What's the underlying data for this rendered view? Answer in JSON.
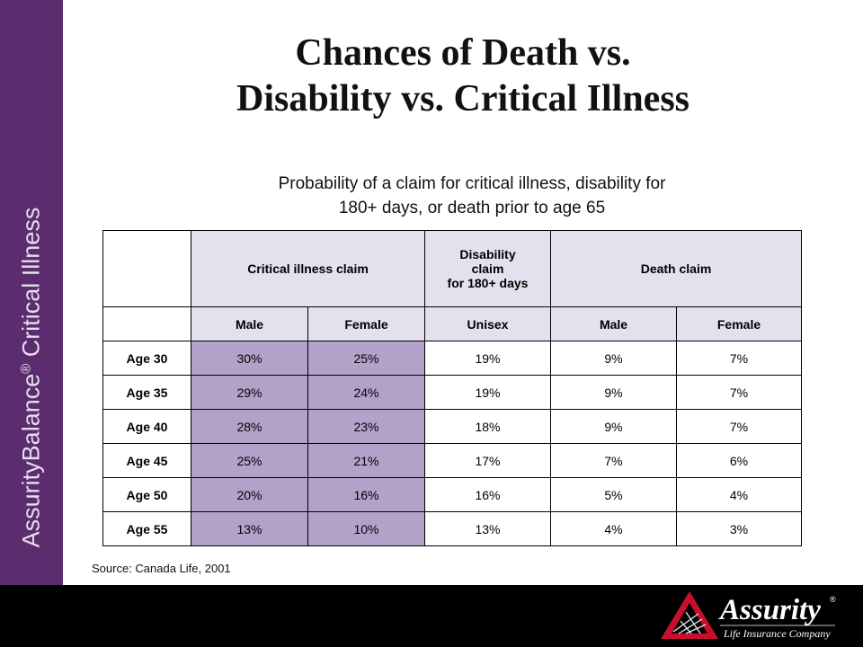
{
  "sidebar": {
    "brand": "AssurityBalance",
    "reg": "®",
    "product": " Critical Illness"
  },
  "title": {
    "line1": "Chances of Death vs.",
    "line2": "Disability vs. Critical Illness"
  },
  "subtitle": {
    "line1": "Probability of a claim for critical illness, disability for",
    "line2": "180+ days, or death prior to age 65"
  },
  "table": {
    "group_headers": {
      "critical": "Critical illness claim",
      "disability_l1": "Disability",
      "disability_l2": "claim",
      "disability_l3": "for 180+ days",
      "death": "Death claim"
    },
    "sub_headers": [
      "Male",
      "Female",
      "Unisex",
      "Male",
      "Female"
    ],
    "rows": [
      {
        "label": "Age 30",
        "values": [
          "30%",
          "25%",
          "19%",
          "9%",
          "7%"
        ]
      },
      {
        "label": "Age 35",
        "values": [
          "29%",
          "24%",
          "19%",
          "9%",
          "7%"
        ]
      },
      {
        "label": "Age 40",
        "values": [
          "28%",
          "23%",
          "18%",
          "9%",
          "7%"
        ]
      },
      {
        "label": "Age 45",
        "values": [
          "25%",
          "21%",
          "17%",
          "7%",
          "6%"
        ]
      },
      {
        "label": "Age 50",
        "values": [
          "20%",
          "16%",
          "16%",
          "5%",
          "4%"
        ]
      },
      {
        "label": "Age 55",
        "values": [
          "13%",
          "10%",
          "13%",
          "4%",
          "3%"
        ]
      }
    ]
  },
  "source": "Source: Canada Life, 2001",
  "logo": {
    "name": "Assurity",
    "reg": "®",
    "tagline": "Life Insurance Company"
  },
  "colors": {
    "sidebar": "#5b2d6e",
    "header_lavender": "#e5e0ee",
    "cell_purple": "#b2a2ca",
    "logo_red": "#c8102e"
  }
}
